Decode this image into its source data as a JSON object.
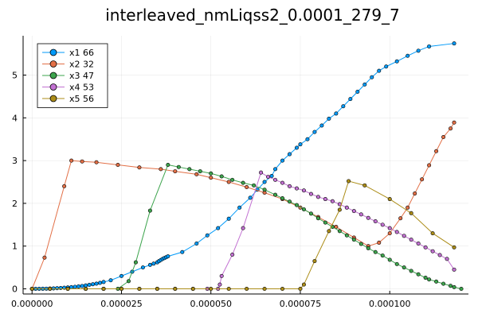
{
  "chart_data": {
    "type": "scatter",
    "title": "interleaved_nmLiqss2_0.0001_279_7",
    "xlabel": "",
    "ylabel": "",
    "xlim": [
      -2.5e-06,
      0.000122
    ],
    "ylim": [
      -0.12,
      5.92
    ],
    "grid": true,
    "legend_position": "top-left",
    "x_ticks": [
      {
        "value": 0.0,
        "label": "0.000000"
      },
      {
        "value": 2.5e-05,
        "label": "0.000025"
      },
      {
        "value": 5e-05,
        "label": "0.000050"
      },
      {
        "value": 7.5e-05,
        "label": "0.000075"
      },
      {
        "value": 0.0001,
        "label": "0.000100"
      }
    ],
    "y_ticks": [
      {
        "value": 0,
        "label": "0"
      },
      {
        "value": 1,
        "label": "1"
      },
      {
        "value": 2,
        "label": "2"
      },
      {
        "value": 3,
        "label": "3"
      },
      {
        "value": 4,
        "label": "4"
      },
      {
        "value": 5,
        "label": "5"
      }
    ],
    "series": [
      {
        "name": "x1 66",
        "color": "#009af9",
        "points": [
          [
            0.0,
            0.0
          ],
          [
            1e-06,
            0.0
          ],
          [
            2e-06,
            0.001
          ],
          [
            3e-06,
            0.002
          ],
          [
            4e-06,
            0.004
          ],
          [
            5e-06,
            0.007
          ],
          [
            6e-06,
            0.01
          ],
          [
            7e-06,
            0.015
          ],
          [
            8e-06,
            0.02
          ],
          [
            9e-06,
            0.026
          ],
          [
            1e-05,
            0.033
          ],
          [
            1.1e-05,
            0.04
          ],
          [
            1.2e-05,
            0.048
          ],
          [
            1.3e-05,
            0.057
          ],
          [
            1.4e-05,
            0.067
          ],
          [
            1.5e-05,
            0.08
          ],
          [
            1.6e-05,
            0.093
          ],
          [
            1.7e-05,
            0.107
          ],
          [
            1.8e-05,
            0.122
          ],
          [
            1.9e-05,
            0.14
          ],
          [
            2e-05,
            0.16
          ],
          [
            2.2e-05,
            0.2
          ],
          [
            2.5e-05,
            0.3
          ],
          [
            2.8e-05,
            0.4
          ],
          [
            3.1e-05,
            0.5
          ],
          [
            3.3e-05,
            0.56
          ],
          [
            3.4e-05,
            0.59
          ],
          [
            3.5e-05,
            0.62
          ],
          [
            3.55e-05,
            0.65
          ],
          [
            3.6e-05,
            0.675
          ],
          [
            3.65e-05,
            0.7
          ],
          [
            3.7e-05,
            0.72
          ],
          [
            3.75e-05,
            0.74
          ],
          [
            3.8e-05,
            0.76
          ],
          [
            4.2e-05,
            0.86
          ],
          [
            4.6e-05,
            1.06
          ],
          [
            4.9e-05,
            1.25
          ],
          [
            5.2e-05,
            1.42
          ],
          [
            5.5e-05,
            1.64
          ],
          [
            5.8e-05,
            1.9
          ],
          [
            6.1e-05,
            2.13
          ],
          [
            6.3e-05,
            2.32
          ],
          [
            6.5e-05,
            2.5
          ],
          [
            6.7e-05,
            2.64
          ],
          [
            6.8e-05,
            2.8
          ],
          [
            7e-05,
            3.0
          ],
          [
            7.2e-05,
            3.15
          ],
          [
            7.4e-05,
            3.3
          ],
          [
            7.5e-05,
            3.38
          ],
          [
            7.7e-05,
            3.5
          ],
          [
            7.9e-05,
            3.67
          ],
          [
            8.1e-05,
            3.82
          ],
          [
            8.3e-05,
            3.98
          ],
          [
            8.5e-05,
            4.1
          ],
          [
            8.7e-05,
            4.27
          ],
          [
            8.9e-05,
            4.44
          ],
          [
            9.1e-05,
            4.61
          ],
          [
            9.3e-05,
            4.78
          ],
          [
            9.5e-05,
            4.95
          ],
          [
            9.7e-05,
            5.1
          ],
          [
            9.9e-05,
            5.2
          ],
          [
            0.000102,
            5.32
          ],
          [
            0.000105,
            5.45
          ],
          [
            0.000108,
            5.57
          ],
          [
            0.000111,
            5.67
          ],
          [
            0.000118,
            5.74
          ]
        ]
      },
      {
        "name": "x2 32",
        "color": "#e26f46",
        "points": [
          [
            0.0,
            0.0
          ],
          [
            3.5e-06,
            0.73
          ],
          [
            9e-06,
            2.4
          ],
          [
            1.1e-05,
            3.0
          ],
          [
            1.4e-05,
            2.98
          ],
          [
            1.8e-05,
            2.96
          ],
          [
            2.4e-05,
            2.9
          ],
          [
            3e-05,
            2.84
          ],
          [
            3.6e-05,
            2.8
          ],
          [
            4e-05,
            2.75
          ],
          [
            4.6e-05,
            2.68
          ],
          [
            5e-05,
            2.6
          ],
          [
            5.5e-05,
            2.5
          ],
          [
            6e-05,
            2.38
          ],
          [
            6.5e-05,
            2.25
          ],
          [
            7e-05,
            2.1
          ],
          [
            7.5e-05,
            1.9
          ],
          [
            8e-05,
            1.68
          ],
          [
            8.5e-05,
            1.45
          ],
          [
            9e-05,
            1.2
          ],
          [
            9.4e-05,
            1.0
          ],
          [
            9.7e-05,
            1.08
          ],
          [
            0.0001,
            1.3
          ],
          [
            0.000103,
            1.65
          ],
          [
            0.000105,
            1.9
          ],
          [
            0.000107,
            2.23
          ],
          [
            0.000109,
            2.56
          ],
          [
            0.000111,
            2.89
          ],
          [
            0.000113,
            3.22
          ],
          [
            0.000115,
            3.55
          ],
          [
            0.000117,
            3.75
          ],
          [
            0.000118,
            3.89
          ]
        ]
      },
      {
        "name": "x3 47",
        "color": "#3da44d",
        "points": [
          [
            0.0,
            0.0
          ],
          [
            5e-06,
            0.0
          ],
          [
            1e-05,
            0.0
          ],
          [
            1.5e-05,
            0.0
          ],
          [
            2e-05,
            0.0
          ],
          [
            2.4e-05,
            0.0
          ],
          [
            2.7e-05,
            0.18
          ],
          [
            2.9e-05,
            0.62
          ],
          [
            3.3e-05,
            1.83
          ],
          [
            3.8e-05,
            2.9
          ],
          [
            4.1e-05,
            2.85
          ],
          [
            4.4e-05,
            2.8
          ],
          [
            4.7e-05,
            2.75
          ],
          [
            5e-05,
            2.7
          ],
          [
            5.3e-05,
            2.63
          ],
          [
            5.6e-05,
            2.55
          ],
          [
            5.9e-05,
            2.48
          ],
          [
            6.2e-05,
            2.42
          ],
          [
            6.5e-05,
            2.32
          ],
          [
            6.8e-05,
            2.2
          ],
          [
            7e-05,
            2.12
          ],
          [
            7.2e-05,
            2.04
          ],
          [
            7.4e-05,
            1.96
          ],
          [
            7.6e-05,
            1.86
          ],
          [
            7.8e-05,
            1.76
          ],
          [
            8e-05,
            1.65
          ],
          [
            8.2e-05,
            1.55
          ],
          [
            8.4e-05,
            1.45
          ],
          [
            8.6e-05,
            1.35
          ],
          [
            8.8e-05,
            1.25
          ],
          [
            9e-05,
            1.15
          ],
          [
            9.2e-05,
            1.05
          ],
          [
            9.4e-05,
            0.95
          ],
          [
            9.6e-05,
            0.86
          ],
          [
            9.8e-05,
            0.78
          ],
          [
            0.0001,
            0.68
          ],
          [
            0.000102,
            0.58
          ],
          [
            0.000104,
            0.5
          ],
          [
            0.000106,
            0.42
          ],
          [
            0.000108,
            0.34
          ],
          [
            0.00011,
            0.26
          ],
          [
            0.000111,
            0.22
          ],
          [
            0.000113,
            0.17
          ],
          [
            0.000115,
            0.12
          ],
          [
            0.000117,
            0.07
          ],
          [
            0.000118,
            0.04
          ],
          [
            0.00012,
            0.0
          ]
        ]
      },
      {
        "name": "x4 53",
        "color": "#c271d2",
        "points": [
          [
            0.0,
            0.0
          ],
          [
            5e-06,
            0.0
          ],
          [
            1e-05,
            0.0
          ],
          [
            1.5e-05,
            0.0
          ],
          [
            2e-05,
            0.0
          ],
          [
            2.5e-05,
            0.0
          ],
          [
            3e-05,
            0.0
          ],
          [
            3.5e-05,
            0.0
          ],
          [
            4e-05,
            0.0
          ],
          [
            4.5e-05,
            0.0
          ],
          [
            4.9e-05,
            0.0
          ],
          [
            5.2e-05,
            0.0
          ],
          [
            5.25e-05,
            0.1
          ],
          [
            5.3e-05,
            0.3
          ],
          [
            5.6e-05,
            0.8
          ],
          [
            5.9e-05,
            1.42
          ],
          [
            6.4e-05,
            2.72
          ],
          [
            6.6e-05,
            2.62
          ],
          [
            6.8e-05,
            2.55
          ],
          [
            7e-05,
            2.48
          ],
          [
            7.2e-05,
            2.4
          ],
          [
            7.4e-05,
            2.35
          ],
          [
            7.6e-05,
            2.3
          ],
          [
            7.8e-05,
            2.22
          ],
          [
            8e-05,
            2.15
          ],
          [
            8.2e-05,
            2.1
          ],
          [
            8.4e-05,
            2.05
          ],
          [
            8.6e-05,
            1.98
          ],
          [
            8.8e-05,
            1.9
          ],
          [
            9e-05,
            1.82
          ],
          [
            9.2e-05,
            1.74
          ],
          [
            9.4e-05,
            1.66
          ],
          [
            9.6e-05,
            1.58
          ],
          [
            9.8e-05,
            1.5
          ],
          [
            0.0001,
            1.42
          ],
          [
            0.000102,
            1.33
          ],
          [
            0.000104,
            1.24
          ],
          [
            0.000106,
            1.15
          ],
          [
            0.000108,
            1.06
          ],
          [
            0.00011,
            0.97
          ],
          [
            0.000112,
            0.88
          ],
          [
            0.000114,
            0.79
          ],
          [
            0.000116,
            0.7
          ],
          [
            0.000118,
            0.45
          ]
        ]
      },
      {
        "name": "x5 56",
        "color": "#ac8d18",
        "points": [
          [
            0.0,
            0.0
          ],
          [
            5e-06,
            0.0
          ],
          [
            1e-05,
            0.0
          ],
          [
            1.5e-05,
            0.0
          ],
          [
            2e-05,
            0.0
          ],
          [
            2.5e-05,
            0.0
          ],
          [
            3e-05,
            0.0
          ],
          [
            3.5e-05,
            0.0
          ],
          [
            4e-05,
            0.0
          ],
          [
            4.5e-05,
            0.0
          ],
          [
            5e-05,
            0.0
          ],
          [
            5.5e-05,
            0.0
          ],
          [
            6e-05,
            0.0
          ],
          [
            6.5e-05,
            0.0
          ],
          [
            7e-05,
            0.0
          ],
          [
            7.5e-05,
            0.0
          ],
          [
            7.6e-05,
            0.1
          ],
          [
            7.9e-05,
            0.65
          ],
          [
            8.3e-05,
            1.35
          ],
          [
            8.6e-05,
            1.85
          ],
          [
            8.85e-05,
            2.52
          ],
          [
            9.3e-05,
            2.42
          ],
          [
            0.0001,
            2.1
          ],
          [
            0.000106,
            1.77
          ],
          [
            0.000112,
            1.3
          ],
          [
            0.000118,
            0.97
          ]
        ]
      }
    ]
  }
}
